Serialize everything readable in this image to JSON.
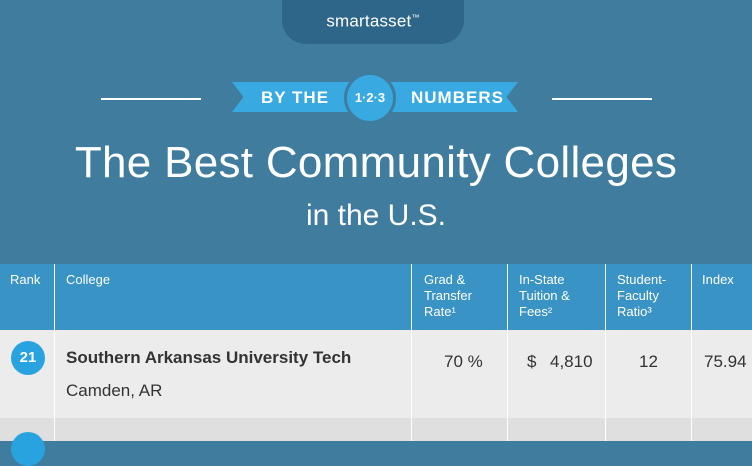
{
  "brand": {
    "name": "smartasset",
    "mark": "™"
  },
  "banner": {
    "left": "BY THE",
    "badge": "1·2·3",
    "right": "NUMBERS"
  },
  "title": {
    "line1": "The Best Community Colleges",
    "line2": "in the U.S."
  },
  "table": {
    "headers": {
      "rank": "Rank",
      "college": "College",
      "grad_transfer": [
        "Grad &",
        "Transfer",
        "Rate¹"
      ],
      "tuition": [
        "In-State",
        "Tuition &",
        "Fees²"
      ],
      "ratio": [
        "Student-",
        "Faculty",
        "Ratio³"
      ],
      "index": "Index"
    },
    "rows": [
      {
        "rank": "21",
        "college": "Southern Arkansas University Tech",
        "location": "Camden, AR",
        "grad_transfer": "70 %",
        "tuition_symbol": "$",
        "tuition": "4,810",
        "ratio": "12",
        "index": "75.94"
      }
    ]
  },
  "colors": {
    "background": "#3f7c9e",
    "brand_tab": "#2d6688",
    "accent": "#39a9e2",
    "table_header": "#3993c5",
    "row": "#ececec"
  }
}
